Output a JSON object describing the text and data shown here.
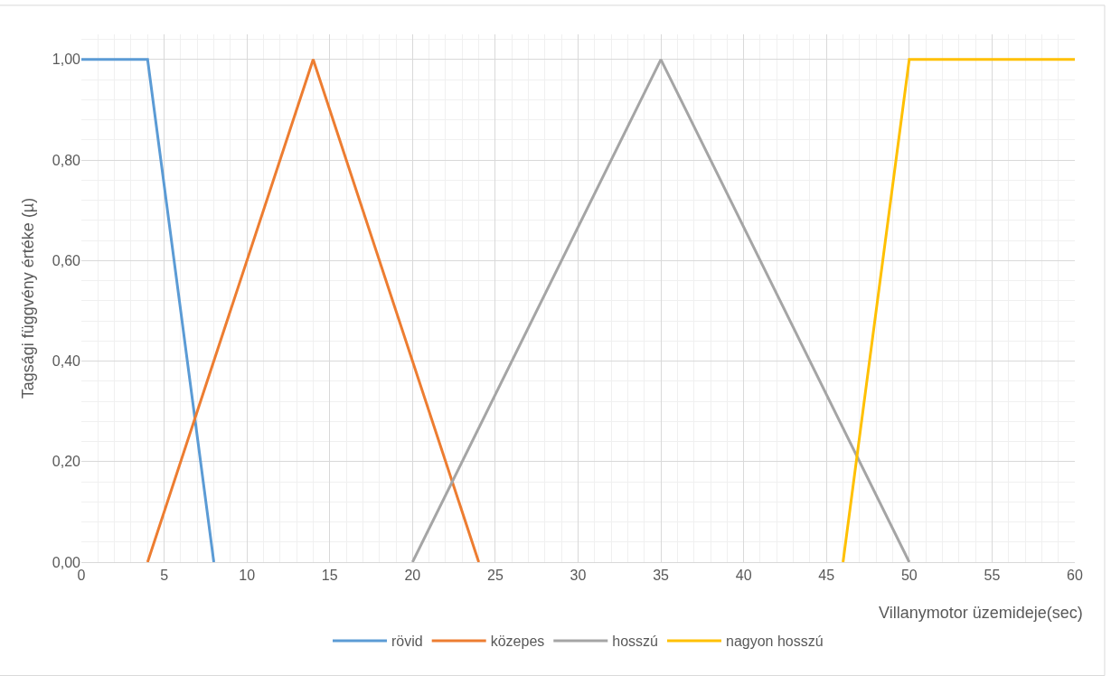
{
  "chart_data": {
    "type": "line",
    "xlabel": "Villanymotor üzemideje(sec)",
    "ylabel": "Tagsági függvény értéke (µ)",
    "series": [
      {
        "name": "rövid",
        "color": "#5b9bd5",
        "x": [
          0,
          4,
          8
        ],
        "values": [
          1,
          1,
          0
        ]
      },
      {
        "name": "közepes",
        "color": "#ed7d31",
        "x": [
          4,
          14,
          24
        ],
        "values": [
          0,
          1,
          0
        ]
      },
      {
        "name": "hosszú",
        "color": "#a5a5a5",
        "x": [
          20,
          35,
          50
        ],
        "values": [
          0,
          1,
          0
        ]
      },
      {
        "name": "nagyon hosszú",
        "color": "#ffc000",
        "x": [
          46,
          50,
          60
        ],
        "values": [
          0,
          1,
          1
        ]
      }
    ],
    "xlim": [
      0,
      60
    ],
    "xticks": [
      0,
      5,
      10,
      15,
      20,
      25,
      30,
      35,
      40,
      45,
      50,
      55,
      60
    ],
    "ylim": [
      0,
      1.05
    ],
    "yticks": [
      {
        "value": 0,
        "label": "0,00"
      },
      {
        "value": 0.2,
        "label": "0,20"
      },
      {
        "value": 0.4,
        "label": "0,40"
      },
      {
        "value": 0.6,
        "label": "0,60"
      },
      {
        "value": 0.8,
        "label": "0,80"
      },
      {
        "value": 1,
        "label": "1,00"
      }
    ],
    "grid": true,
    "legend": "bottom",
    "marker": "none",
    "line_style": "solid"
  }
}
